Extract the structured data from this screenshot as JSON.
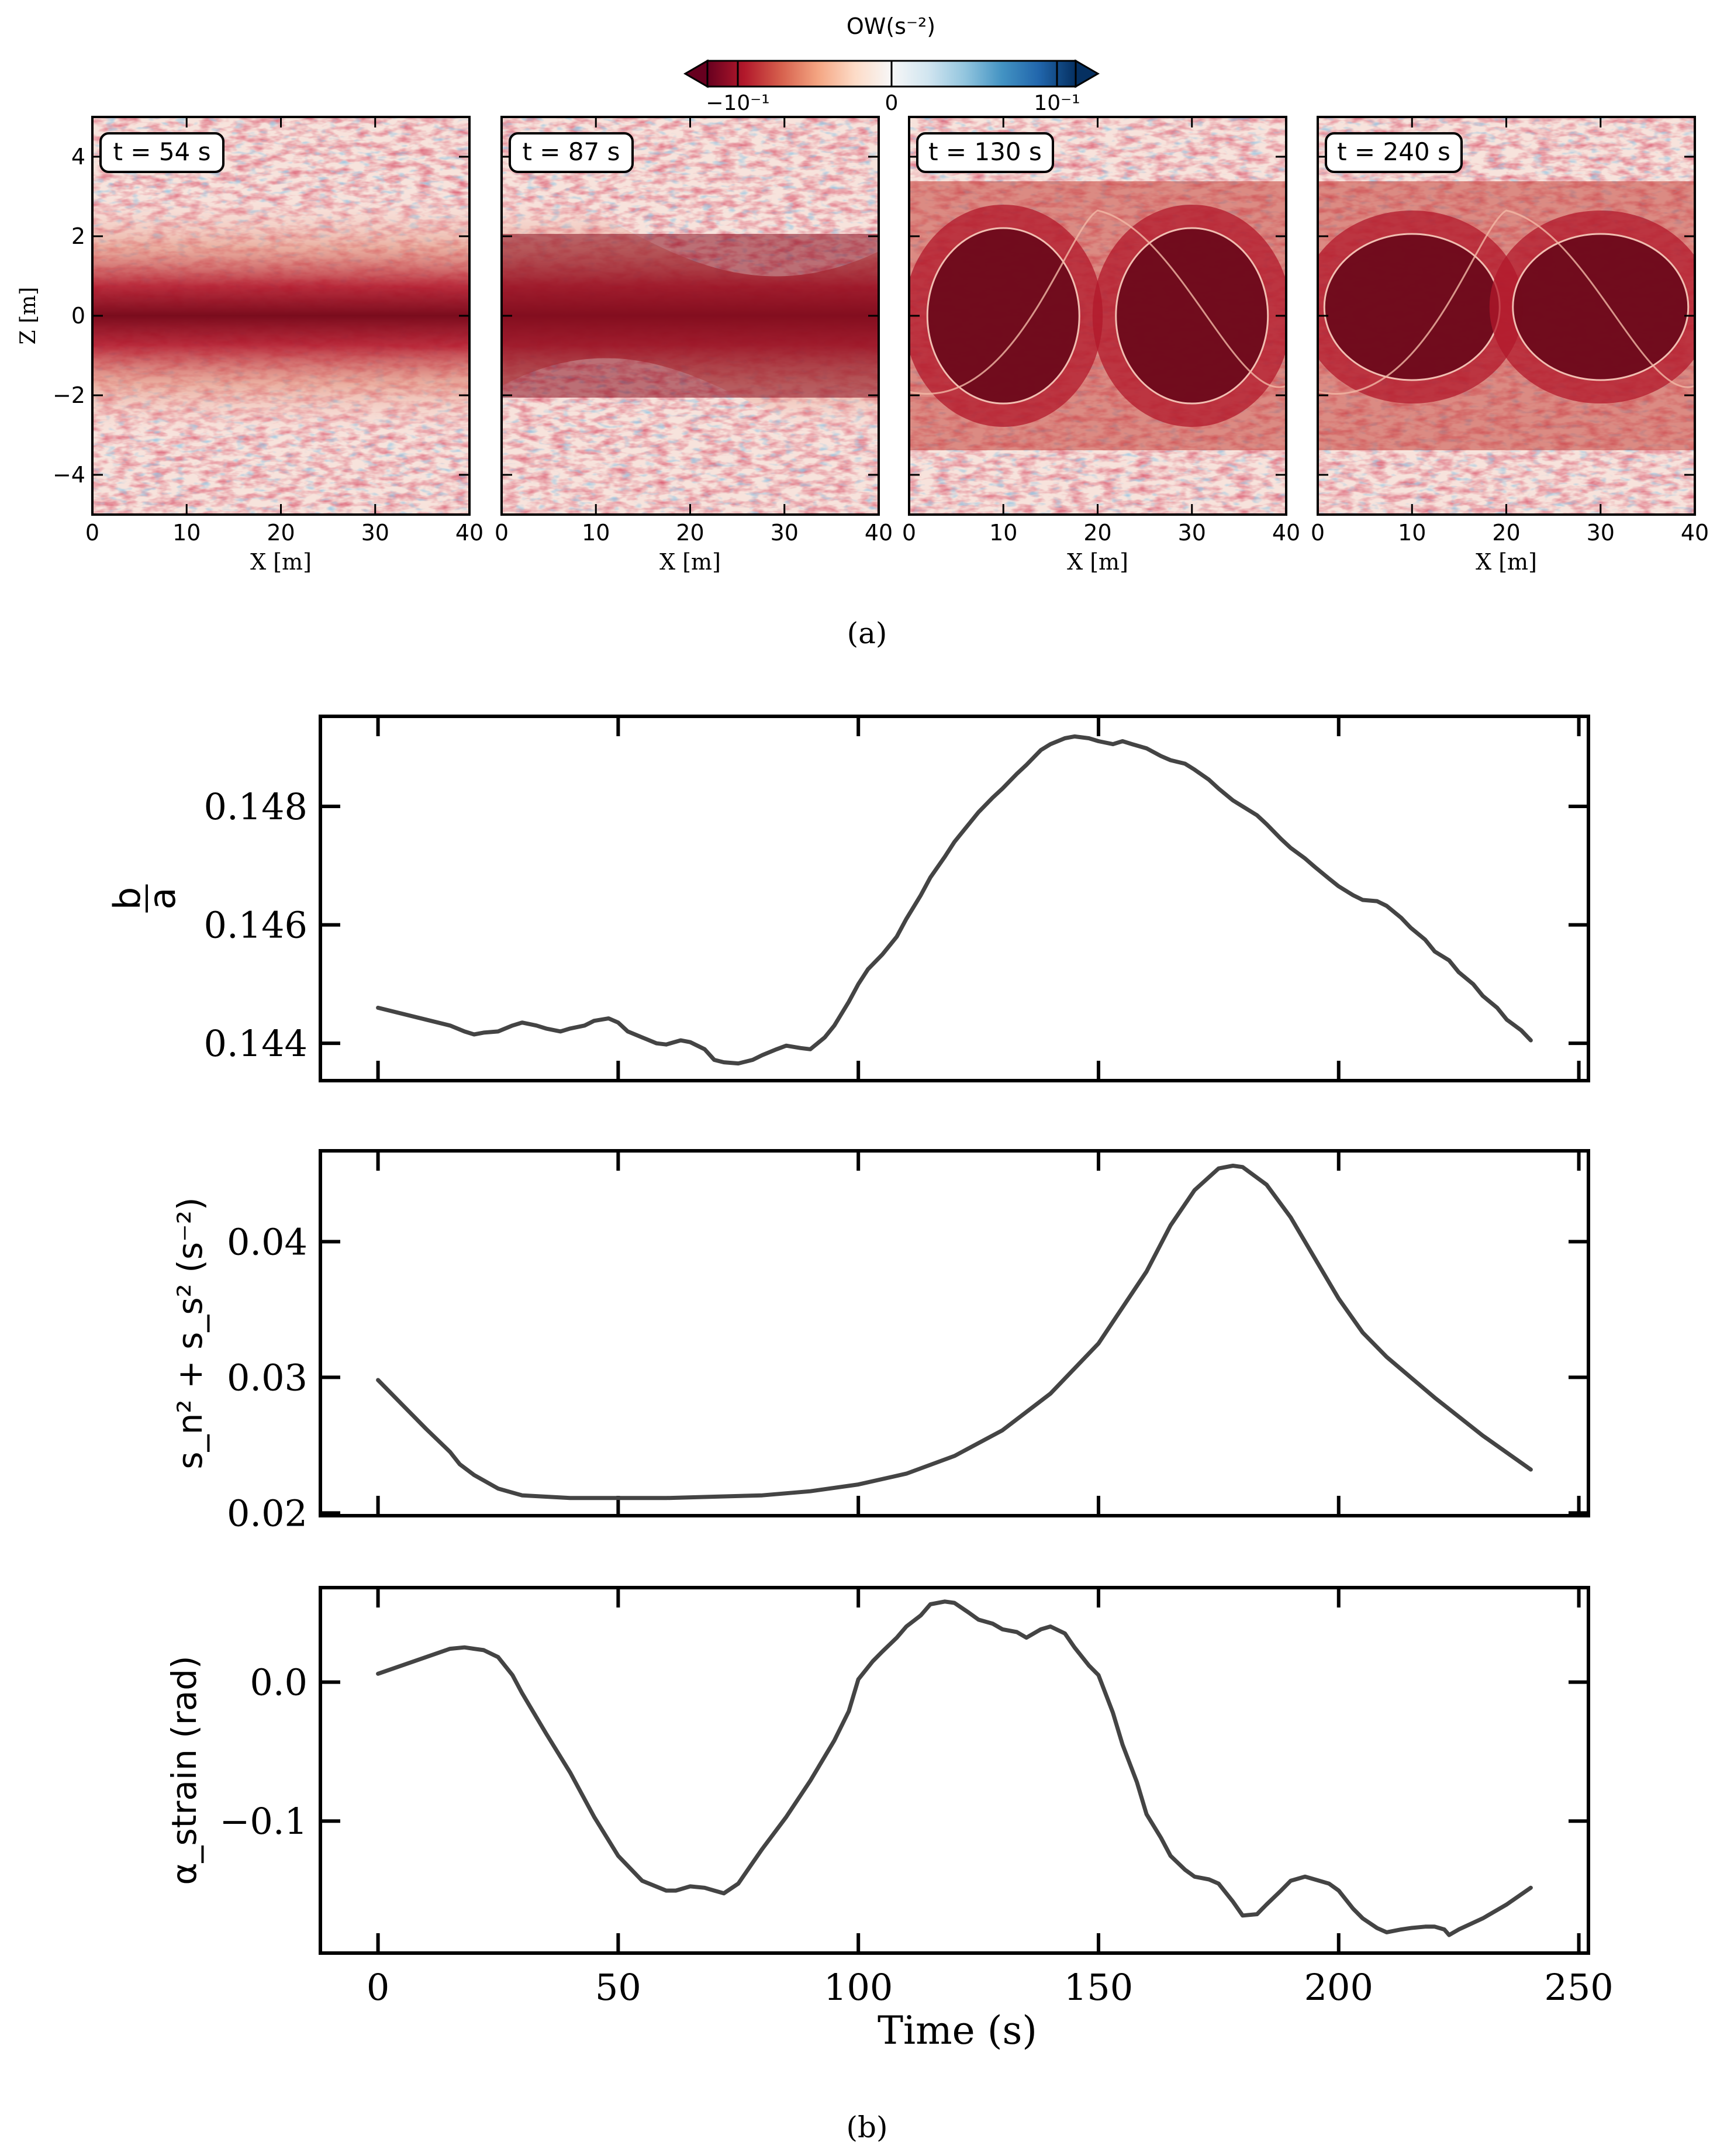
{
  "figure": {
    "caption_a": "(a)",
    "caption_b": "(b)"
  },
  "colorbar": {
    "label": "OW(s⁻²)",
    "tick_labels": [
      "−10⁻¹",
      "0",
      "10⁻¹"
    ],
    "colors": [
      "#67001f",
      "#b2182b",
      "#d6604d",
      "#f4a582",
      "#fddbc7",
      "#f7f7f7",
      "#d1e5f0",
      "#92c5de",
      "#4393c3",
      "#2166ac",
      "#053061"
    ]
  },
  "chart_data": [
    {
      "type": "heatmap",
      "label": "t = 54 s",
      "time_s": 54,
      "xlabel": "X [m]",
      "ylabel": "Z [m]",
      "xlim": [
        0,
        40
      ],
      "ylim": [
        -5,
        5
      ],
      "xticks": [
        0,
        10,
        20,
        30,
        40
      ],
      "yticks": [
        -4,
        -2,
        0,
        2,
        4
      ]
    },
    {
      "type": "heatmap",
      "label": "t = 87 s",
      "time_s": 87,
      "xlabel": "X [m]",
      "xlim": [
        0,
        40
      ],
      "ylim": [
        -5,
        5
      ],
      "xticks": [
        0,
        10,
        20,
        30,
        40
      ]
    },
    {
      "type": "heatmap",
      "label": "t = 130 s",
      "time_s": 130,
      "xlabel": "X [m]",
      "xlim": [
        0,
        40
      ],
      "ylim": [
        -5,
        5
      ],
      "xticks": [
        0,
        10,
        20,
        30,
        40
      ]
    },
    {
      "type": "heatmap",
      "label": "t = 240 s",
      "time_s": 240,
      "xlabel": "X [m]",
      "xlim": [
        0,
        40
      ],
      "ylim": [
        -5,
        5
      ],
      "xticks": [
        0,
        10,
        20,
        30,
        40
      ]
    },
    {
      "type": "line",
      "ylabel_num": "b",
      "ylabel_den": "a",
      "xlim": [
        -12,
        252
      ],
      "ylim": [
        0.14337,
        0.14952
      ],
      "yticks": [
        0.144,
        0.146,
        0.148
      ],
      "ytick_labels": [
        "0.144",
        "0.146",
        "0.148"
      ],
      "x": [
        0,
        10,
        15,
        18,
        20,
        22,
        25,
        28,
        30,
        33,
        35,
        38,
        40,
        43,
        45,
        48,
        50,
        52,
        55,
        58,
        60,
        63,
        65,
        68,
        70,
        72,
        75,
        78,
        80,
        83,
        85,
        88,
        90,
        93,
        95,
        98,
        100,
        102,
        105,
        108,
        110,
        113,
        115,
        118,
        120,
        123,
        125,
        128,
        130,
        133,
        135,
        138,
        140,
        143,
        145,
        148,
        150,
        153,
        155,
        157,
        160,
        163,
        165,
        168,
        170,
        173,
        175,
        178,
        180,
        183,
        185,
        188,
        190,
        193,
        195,
        198,
        200,
        203,
        205,
        208,
        210,
        213,
        215,
        218,
        220,
        223,
        225,
        228,
        230,
        233,
        235,
        238,
        240
      ],
      "values": [
        0.1446,
        0.1444,
        0.1443,
        0.1442,
        0.14415,
        0.14418,
        0.1442,
        0.1443,
        0.14435,
        0.1443,
        0.14425,
        0.1442,
        0.14425,
        0.1443,
        0.14438,
        0.14442,
        0.14435,
        0.1442,
        0.1441,
        0.144,
        0.14398,
        0.14405,
        0.14402,
        0.1439,
        0.14372,
        0.14368,
        0.14366,
        0.14372,
        0.1438,
        0.1439,
        0.14396,
        0.14392,
        0.1439,
        0.1441,
        0.1443,
        0.1447,
        0.145,
        0.14525,
        0.1455,
        0.1458,
        0.1461,
        0.1465,
        0.1468,
        0.14715,
        0.1474,
        0.1477,
        0.1479,
        0.14815,
        0.1483,
        0.14855,
        0.1487,
        0.14895,
        0.14905,
        0.14915,
        0.14918,
        0.14915,
        0.1491,
        0.14905,
        0.1491,
        0.14905,
        0.14898,
        0.14885,
        0.14878,
        0.14872,
        0.14862,
        0.14845,
        0.1483,
        0.1481,
        0.148,
        0.14785,
        0.1477,
        0.14745,
        0.1473,
        0.14712,
        0.14698,
        0.14678,
        0.14665,
        0.1465,
        0.14642,
        0.1464,
        0.14632,
        0.14612,
        0.14595,
        0.14575,
        0.14555,
        0.1454,
        0.1452,
        0.145,
        0.1448,
        0.1446,
        0.1444,
        0.14422,
        0.14405
      ]
    },
    {
      "type": "line",
      "ylabel": "s_n² + s_s² (s⁻²)",
      "xlim": [
        -12,
        252
      ],
      "ylim": [
        0.0198,
        0.0467
      ],
      "yticks": [
        0.02,
        0.03,
        0.04
      ],
      "ytick_labels": [
        "0.02",
        "0.03",
        "0.04"
      ],
      "x": [
        0,
        5,
        10,
        15,
        17,
        20,
        25,
        30,
        40,
        50,
        60,
        70,
        80,
        90,
        100,
        110,
        120,
        130,
        140,
        150,
        160,
        165,
        170,
        175,
        178,
        180,
        185,
        190,
        195,
        200,
        205,
        210,
        220,
        230,
        240
      ],
      "values": [
        0.0298,
        0.028,
        0.0262,
        0.0245,
        0.0236,
        0.0228,
        0.0218,
        0.0213,
        0.0211,
        0.0211,
        0.0211,
        0.0212,
        0.0213,
        0.0216,
        0.0221,
        0.0229,
        0.0242,
        0.0261,
        0.0288,
        0.0325,
        0.0378,
        0.0412,
        0.0438,
        0.0454,
        0.0456,
        0.0455,
        0.0442,
        0.0418,
        0.0388,
        0.0358,
        0.0333,
        0.0315,
        0.0285,
        0.0257,
        0.0232
      ]
    },
    {
      "type": "line",
      "ylabel": "α_strain (rad)",
      "xlabel": "Time (s)",
      "xlim": [
        -12,
        252
      ],
      "ylim": [
        -0.195,
        0.068
      ],
      "yticks": [
        -0.1,
        0.0
      ],
      "ytick_labels": [
        "−0.1",
        "0.0"
      ],
      "xticks": [
        0,
        50,
        100,
        150,
        200,
        250
      ],
      "xtick_labels": [
        "0",
        "50",
        "100",
        "150",
        "200",
        "250"
      ],
      "x": [
        0,
        5,
        10,
        15,
        18,
        20,
        22,
        25,
        28,
        30,
        35,
        40,
        45,
        50,
        55,
        60,
        62,
        65,
        68,
        70,
        72,
        75,
        78,
        80,
        85,
        90,
        95,
        98,
        100,
        103,
        105,
        108,
        110,
        113,
        115,
        118,
        120,
        123,
        125,
        128,
        130,
        133,
        135,
        138,
        140,
        143,
        145,
        148,
        150,
        153,
        155,
        158,
        160,
        163,
        165,
        168,
        170,
        173,
        175,
        178,
        180,
        183,
        185,
        188,
        190,
        193,
        195,
        198,
        200,
        203,
        205,
        208,
        210,
        213,
        215,
        218,
        220,
        222,
        223,
        225,
        230,
        235,
        240
      ],
      "values": [
        0.006,
        0.012,
        0.018,
        0.024,
        0.025,
        0.024,
        0.023,
        0.018,
        0.005,
        -0.008,
        -0.037,
        -0.065,
        -0.097,
        -0.125,
        -0.143,
        -0.15,
        -0.15,
        -0.147,
        -0.148,
        -0.15,
        -0.152,
        -0.145,
        -0.13,
        -0.12,
        -0.097,
        -0.071,
        -0.042,
        -0.021,
        0.002,
        0.015,
        0.022,
        0.032,
        0.04,
        0.048,
        0.056,
        0.058,
        0.057,
        0.05,
        0.045,
        0.042,
        0.038,
        0.036,
        0.032,
        0.038,
        0.04,
        0.035,
        0.025,
        0.012,
        0.005,
        -0.022,
        -0.045,
        -0.072,
        -0.095,
        -0.112,
        -0.125,
        -0.135,
        -0.14,
        -0.142,
        -0.145,
        -0.158,
        -0.168,
        -0.167,
        -0.16,
        -0.15,
        -0.143,
        -0.14,
        -0.142,
        -0.145,
        -0.15,
        -0.163,
        -0.17,
        -0.177,
        -0.18,
        -0.178,
        -0.177,
        -0.176,
        -0.176,
        -0.178,
        -0.182,
        -0.178,
        -0.17,
        -0.16,
        -0.148
      ]
    }
  ]
}
